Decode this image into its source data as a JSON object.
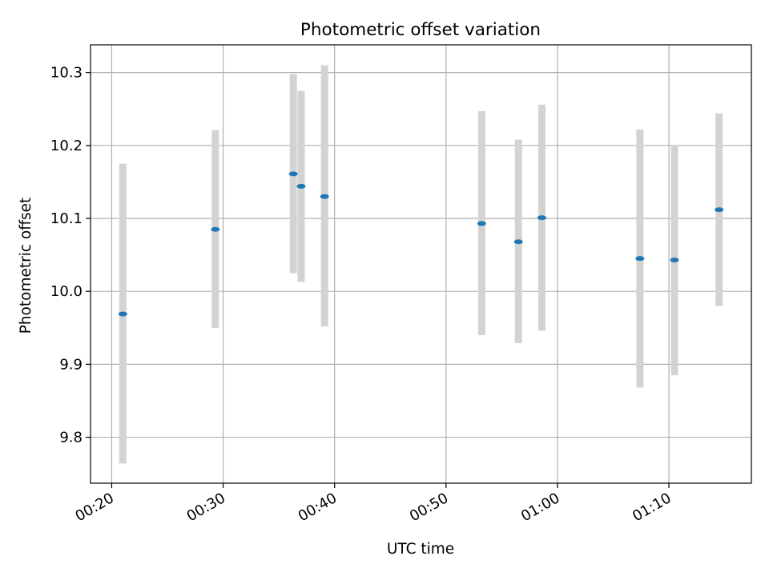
{
  "chart_data": {
    "type": "scatter",
    "title": "Photometric offset variation",
    "xlabel": "UTC time",
    "ylabel": "Photometric offset",
    "x_unit": "minutes after 00:00 UTC",
    "xlim": [
      18.1,
      77.4
    ],
    "ylim": [
      9.737,
      10.338
    ],
    "grid": true,
    "x_ticks": [
      {
        "value": 20,
        "label": "00:20"
      },
      {
        "value": 30,
        "label": "00:30"
      },
      {
        "value": 40,
        "label": "00:40"
      },
      {
        "value": 50,
        "label": "00:50"
      },
      {
        "value": 60,
        "label": "01:00"
      },
      {
        "value": 70,
        "label": "01:10"
      }
    ],
    "y_ticks": [
      {
        "value": 9.8,
        "label": "9.8"
      },
      {
        "value": 9.9,
        "label": "9.9"
      },
      {
        "value": 10.0,
        "label": "10.0"
      },
      {
        "value": 10.1,
        "label": "10.1"
      },
      {
        "value": 10.2,
        "label": "10.2"
      },
      {
        "value": 10.3,
        "label": "10.3"
      }
    ],
    "series": [
      {
        "name": "offset",
        "color": "#1f77b4",
        "errorbar_color": "#d3d3d3",
        "points": [
          {
            "x": 21.0,
            "y": 9.969,
            "yerr_low": 9.764,
            "yerr_high": 10.175
          },
          {
            "x": 29.3,
            "y": 10.085,
            "yerr_low": 9.95,
            "yerr_high": 10.221
          },
          {
            "x": 36.3,
            "y": 10.161,
            "yerr_low": 10.025,
            "yerr_high": 10.298
          },
          {
            "x": 37.0,
            "y": 10.144,
            "yerr_low": 10.013,
            "yerr_high": 10.275
          },
          {
            "x": 39.1,
            "y": 10.13,
            "yerr_low": 9.952,
            "yerr_high": 10.31
          },
          {
            "x": 53.2,
            "y": 10.093,
            "yerr_low": 9.94,
            "yerr_high": 10.247
          },
          {
            "x": 56.5,
            "y": 10.068,
            "yerr_low": 9.929,
            "yerr_high": 10.208
          },
          {
            "x": 58.6,
            "y": 10.101,
            "yerr_low": 9.946,
            "yerr_high": 10.256
          },
          {
            "x": 67.4,
            "y": 10.045,
            "yerr_low": 9.868,
            "yerr_high": 10.222
          },
          {
            "x": 70.5,
            "y": 10.043,
            "yerr_low": 9.885,
            "yerr_high": 10.201
          },
          {
            "x": 74.5,
            "y": 10.112,
            "yerr_low": 9.98,
            "yerr_high": 10.244
          }
        ]
      }
    ]
  }
}
